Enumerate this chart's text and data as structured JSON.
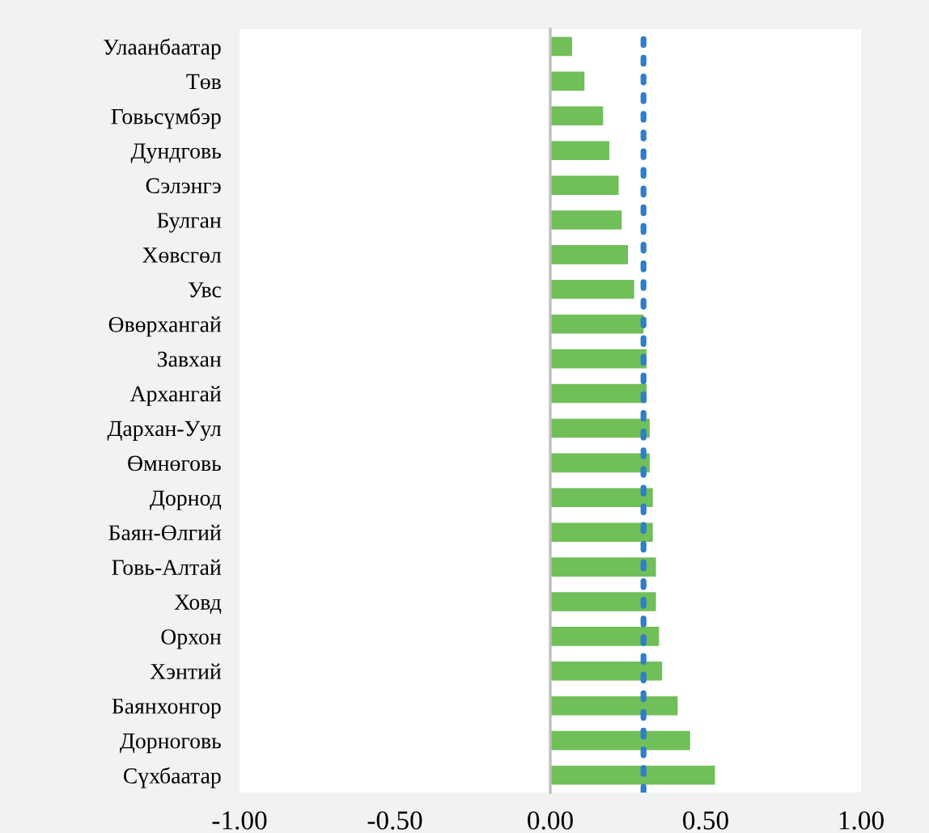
{
  "chart_data": {
    "type": "bar",
    "orientation": "horizontal",
    "categories": [
      "Улаанбаатар",
      "Төв",
      "Говьсүмбэр",
      "Дундговь",
      "Сэлэнгэ",
      "Булган",
      "Хөвсгөл",
      "Увс",
      "Өвөрхангай",
      "Завхан",
      "Архангай",
      "Дархан-Уул",
      "Өмнөговь",
      "Дорнод",
      "Баян-Өлгий",
      "Говь-Алтай",
      "Ховд",
      "Орхон",
      "Хэнтий",
      "Баянхонгор",
      "Дорноговь",
      "Сүхбаатар"
    ],
    "values": [
      0.07,
      0.11,
      0.17,
      0.19,
      0.22,
      0.23,
      0.25,
      0.27,
      0.3,
      0.31,
      0.31,
      0.32,
      0.32,
      0.33,
      0.33,
      0.34,
      0.34,
      0.35,
      0.36,
      0.41,
      0.45,
      0.53
    ],
    "color": "#70bf59",
    "xlim": [
      -1,
      1
    ],
    "xticks": [
      {
        "value": -1,
        "label": "-1.00"
      },
      {
        "value": -0.5,
        "label": "-0.50"
      },
      {
        "value": 0,
        "label": "0.00"
      },
      {
        "value": 0.5,
        "label": "0.50"
      },
      {
        "value": 1,
        "label": "1.00"
      }
    ],
    "ref_lines": [
      {
        "axis": "x",
        "value": 0.3,
        "color": "#2e7ec9",
        "line_style": "dotted"
      }
    ],
    "legend": false
  }
}
